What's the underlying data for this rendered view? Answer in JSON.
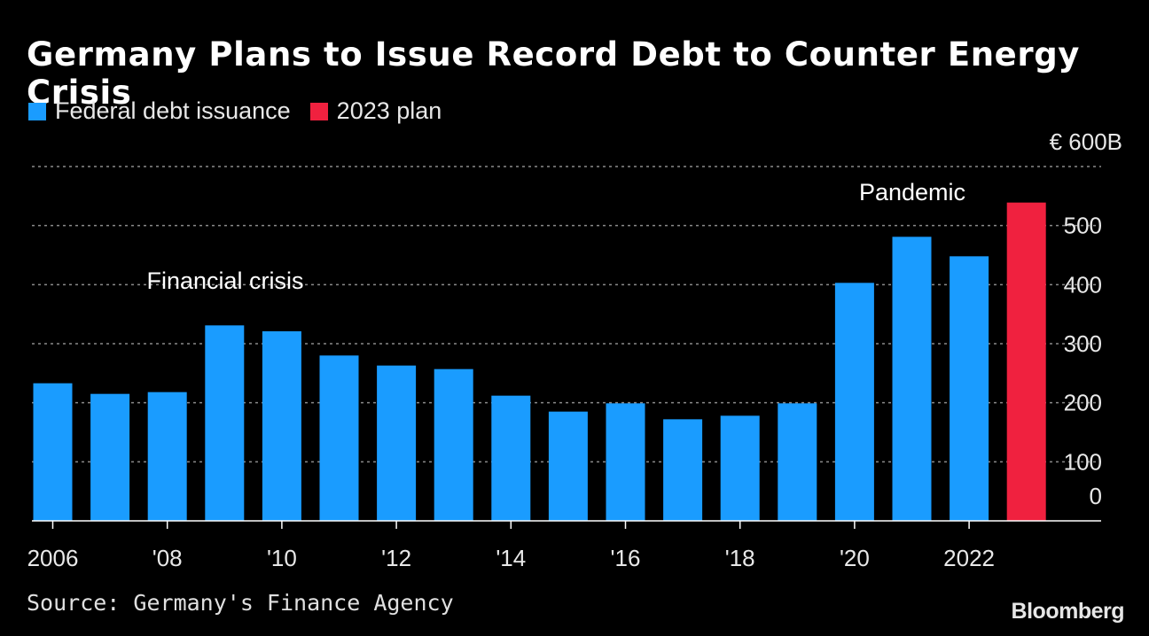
{
  "title": "Germany Plans to Issue Record Debt to Counter Energy Crisis",
  "source": "Source: Germany's Finance Agency",
  "brand": "Bloomberg",
  "colors": {
    "issuance": "#1a9cff",
    "plan": "#f0213f",
    "grid": "#8a8a8a",
    "axis": "#ffffff"
  },
  "chart_data": {
    "type": "bar",
    "legend": [
      {
        "name": "Federal debt issuance",
        "color": "#1a9cff"
      },
      {
        "name": "2023 plan",
        "color": "#f0213f"
      }
    ],
    "categories": [
      2006,
      2007,
      2008,
      2009,
      2010,
      2011,
      2012,
      2013,
      2014,
      2015,
      2016,
      2017,
      2018,
      2019,
      2020,
      2021,
      2022,
      2023
    ],
    "series": [
      {
        "name": "Federal debt issuance",
        "values": [
          233,
          215,
          218,
          331,
          321,
          280,
          263,
          257,
          212,
          185,
          199,
          172,
          178,
          199,
          403,
          481,
          448,
          null
        ]
      },
      {
        "name": "2023 plan",
        "values": [
          null,
          null,
          null,
          null,
          null,
          null,
          null,
          null,
          null,
          null,
          null,
          null,
          null,
          null,
          null,
          null,
          null,
          539
        ]
      }
    ],
    "x_tick_labels": [
      "2006",
      "'08",
      "'10",
      "'12",
      "'14",
      "'16",
      "'18",
      "'20",
      "2022"
    ],
    "x_tick_years": [
      2006,
      2008,
      2010,
      2012,
      2014,
      2016,
      2018,
      2020,
      2022
    ],
    "y_ticks": [
      0,
      100,
      200,
      300,
      400,
      500
    ],
    "y_top_label": "€ 600B",
    "ylim": [
      0,
      600
    ],
    "grid": true,
    "legend_position": "top-left",
    "annotations": [
      {
        "text": "Financial crisis",
        "year": 2009
      },
      {
        "text": "Pandemic",
        "year": 2021
      }
    ]
  }
}
